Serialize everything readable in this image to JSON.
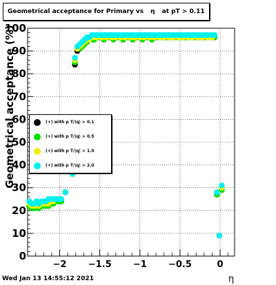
{
  "title": {
    "left": "Geometrical acceptance for Primary vs",
    "symbol": "η",
    "right": "at pT > 0.11"
  },
  "timestamp": "Wed Jan 13 14:55:12 2021",
  "chart_data": {
    "type": "scatter",
    "xlabel": "η",
    "ylabel": "Geometrical acceptance (%)",
    "xlim": [
      -2.4,
      0.18
    ],
    "ylim": [
      0,
      100
    ],
    "xticks": [
      -2,
      -1.5,
      -1,
      -0.5,
      0
    ],
    "xtick_labels": [
      "−2",
      "−1.5",
      "−1",
      "−0.5",
      "0"
    ],
    "yticks": [
      0,
      10,
      20,
      30,
      40,
      50,
      60,
      70,
      80,
      90,
      100
    ],
    "grid": true,
    "legend_position": "middle-left",
    "x": [
      -2.38,
      -2.35,
      -2.32,
      -2.29,
      -2.26,
      -2.23,
      -2.2,
      -2.17,
      -2.14,
      -2.11,
      -2.08,
      -2.05,
      -2.02,
      -1.98,
      -1.93,
      -1.84,
      -1.81,
      -1.78,
      -1.75,
      -1.72,
      -1.69,
      -1.66,
      -1.63,
      -1.6,
      -1.57,
      -1.54,
      -1.51,
      -1.48,
      -1.45,
      -1.42,
      -1.39,
      -1.36,
      -1.33,
      -1.3,
      -1.27,
      -1.24,
      -1.21,
      -1.18,
      -1.15,
      -1.12,
      -1.09,
      -1.06,
      -1.03,
      -1.0,
      -0.97,
      -0.94,
      -0.91,
      -0.88,
      -0.85,
      -0.82,
      -0.79,
      -0.76,
      -0.73,
      -0.7,
      -0.67,
      -0.64,
      -0.61,
      -0.58,
      -0.55,
      -0.52,
      -0.49,
      -0.46,
      -0.43,
      -0.4,
      -0.37,
      -0.34,
      -0.31,
      -0.28,
      -0.25,
      -0.22,
      -0.19,
      -0.16,
      -0.13,
      -0.1,
      -0.07,
      -0.04,
      -0.01,
      0.02,
      0.05
    ],
    "series": [
      {
        "name": "(+) with p T/|q| > 0.1",
        "color": "#000000",
        "values": [
          22,
          21,
          21,
          22,
          21,
          22,
          22,
          22,
          22,
          23,
          23,
          24,
          24,
          24,
          28,
          36,
          84,
          90,
          91,
          92,
          93,
          94,
          95,
          95,
          95,
          96,
          96,
          96,
          95,
          96,
          96,
          96,
          95,
          96,
          96,
          96,
          95,
          96,
          96,
          96,
          95,
          96,
          96,
          96,
          95,
          96,
          96,
          96,
          95,
          96,
          96,
          96,
          96,
          96,
          96,
          96,
          96,
          96,
          96,
          96,
          96,
          96,
          96,
          96,
          96,
          96,
          96,
          96,
          96,
          96,
          96,
          96,
          96,
          96,
          96,
          27,
          9,
          29,
          null
        ]
      },
      {
        "name": "(+) with p T/|q| > 0.5",
        "color": "#00e000",
        "values": [
          22,
          21,
          21,
          22,
          21,
          22,
          22,
          22,
          22,
          23,
          23,
          24,
          24,
          24,
          28,
          36,
          85,
          91,
          91,
          92,
          93,
          94,
          95,
          95,
          95,
          96,
          96,
          96,
          95,
          96,
          96,
          96,
          95,
          96,
          96,
          96,
          95,
          96,
          96,
          96,
          95,
          96,
          96,
          96,
          95,
          96,
          96,
          96,
          95,
          96,
          96,
          96,
          96,
          96,
          96,
          96,
          96,
          96,
          96,
          96,
          96,
          96,
          96,
          96,
          96,
          96,
          96,
          96,
          96,
          96,
          96,
          96,
          96,
          96,
          96,
          27,
          9,
          29,
          null
        ]
      },
      {
        "name": "(+) with p T/|q| > 1.0",
        "color": "#f0f000",
        "values": [
          23,
          22,
          22,
          22,
          22,
          23,
          23,
          23,
          23,
          24,
          24,
          25,
          25,
          25,
          28,
          36,
          86,
          91,
          92,
          93,
          94,
          95,
          95,
          96,
          96,
          96,
          97,
          96,
          96,
          96,
          97,
          96,
          96,
          96,
          97,
          96,
          96,
          96,
          97,
          96,
          96,
          96,
          97,
          96,
          96,
          96,
          97,
          96,
          96,
          96,
          97,
          96,
          96,
          96,
          97,
          96,
          96,
          96,
          97,
          96,
          96,
          96,
          97,
          96,
          96,
          96,
          97,
          96,
          96,
          96,
          97,
          96,
          96,
          96,
          97,
          28,
          9,
          30,
          null
        ]
      },
      {
        "name": "(+) with p T/|q| > 2.0",
        "color": "#00f0f0",
        "values": [
          24,
          23,
          23,
          24,
          23,
          24,
          24,
          24,
          25,
          25,
          25,
          25,
          25,
          25,
          28,
          36,
          87,
          92,
          93,
          94,
          95,
          96,
          96,
          97,
          97,
          97,
          97,
          97,
          97,
          97,
          97,
          97,
          97,
          97,
          97,
          97,
          97,
          97,
          97,
          97,
          97,
          97,
          97,
          97,
          97,
          97,
          97,
          97,
          97,
          97,
          97,
          97,
          97,
          97,
          97,
          97,
          97,
          97,
          97,
          97,
          97,
          97,
          97,
          97,
          97,
          97,
          97,
          97,
          97,
          97,
          97,
          97,
          97,
          97,
          97,
          28,
          9,
          31,
          null
        ]
      }
    ]
  }
}
